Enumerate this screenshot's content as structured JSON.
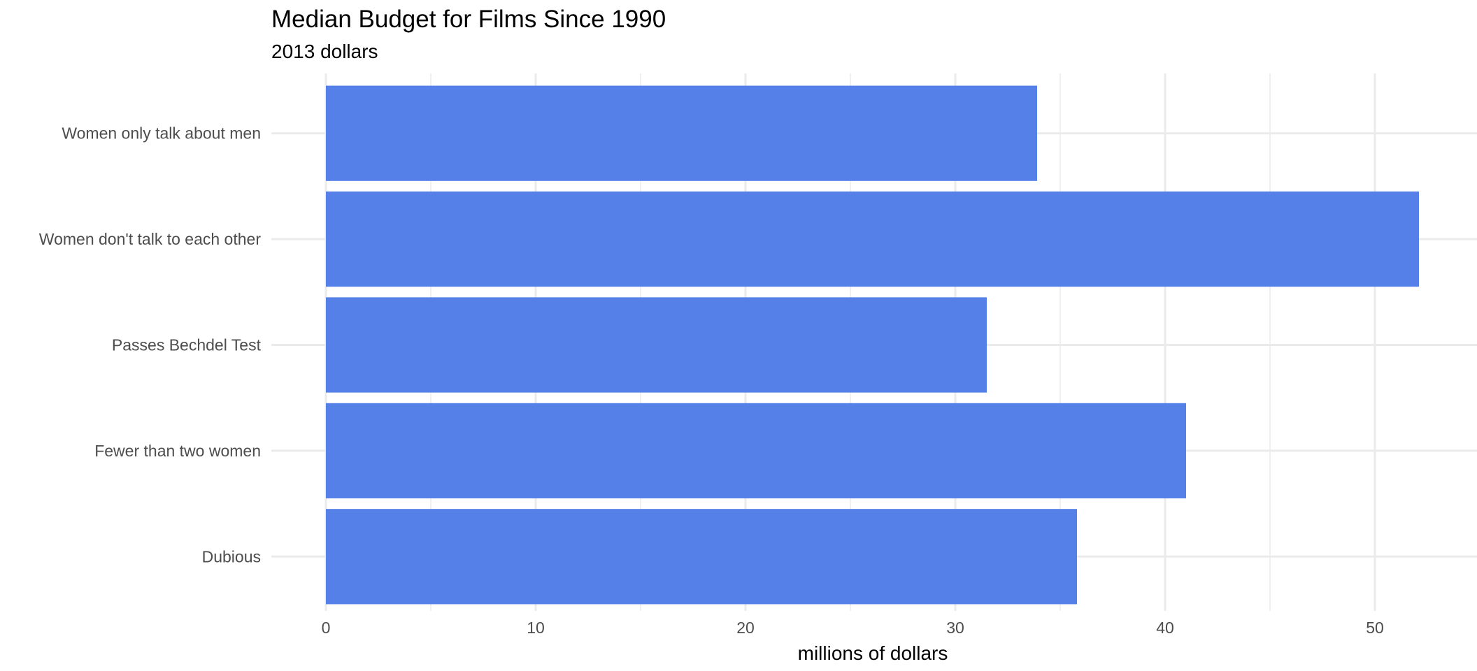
{
  "chart_data": {
    "type": "bar",
    "orientation": "horizontal",
    "title": "Median Budget for Films Since 1990",
    "subtitle": "2013 dollars",
    "xlabel": "millions of dollars",
    "ylabel": "",
    "categories": [
      "Women only talk about men",
      "Women don't talk to each other",
      "Passes Bechdel Test",
      "Fewer than two women",
      "Dubious"
    ],
    "values": [
      33.9,
      52.1,
      31.5,
      41.0,
      35.8
    ],
    "xlim": [
      0,
      55
    ],
    "xticks": [
      0,
      10,
      20,
      30,
      40,
      50
    ],
    "xtick_labels": [
      "0",
      "10",
      "20",
      "30",
      "40",
      "50"
    ],
    "bar_color": "#5480e8",
    "grid": true,
    "legend": "none"
  }
}
